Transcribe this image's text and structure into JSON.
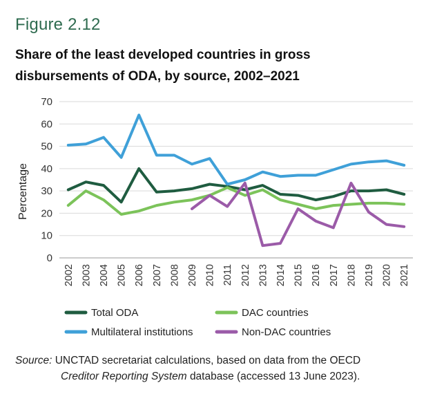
{
  "figure_label": "Figure 2.12",
  "title_line1": "Share of the least developed countries in gross",
  "title_line2": "disbursements of ODA, by source, 2002–2021",
  "source": {
    "label": "Source:",
    "text_a": "UNCTAD secretariat calculations, based on data from the OECD",
    "italic": "Creditor Reporting System",
    "text_b": "database (accessed 13 June 2023)."
  },
  "chart_data": {
    "type": "line",
    "title": "",
    "xlabel": "",
    "ylabel": "Percentage",
    "ylim": [
      0,
      70
    ],
    "yticks": [
      0,
      10,
      20,
      30,
      40,
      50,
      60,
      70
    ],
    "grid": true,
    "legend_position": "bottom",
    "x": [
      "2002",
      "2003",
      "2004",
      "2005",
      "2006",
      "2007",
      "2008",
      "2009",
      "2010",
      "2011",
      "2012",
      "2013",
      "2014",
      "2015",
      "2016",
      "2017",
      "2018",
      "2019",
      "2020",
      "2021"
    ],
    "series": [
      {
        "name": "Total ODA",
        "color": "#1f5c40",
        "values": [
          30.5,
          34,
          32.5,
          25,
          40,
          29.5,
          30,
          31,
          33,
          32,
          30.5,
          32.5,
          28.5,
          28,
          26,
          27.5,
          30,
          30,
          30.5,
          28.5
        ]
      },
      {
        "name": "DAC countries",
        "color": "#7cc35a",
        "values": [
          23.5,
          30,
          26,
          19.5,
          21,
          23.5,
          25,
          26,
          28,
          31.5,
          28,
          30.5,
          26,
          24,
          22,
          23.5,
          24,
          24.5,
          24.5,
          24
        ]
      },
      {
        "name": "Multilateral institutions",
        "color": "#3fa0d8",
        "values": [
          50.5,
          51,
          54,
          45,
          64,
          46,
          46,
          42,
          44.5,
          33,
          35,
          38.5,
          36.5,
          37,
          37,
          39.5,
          42,
          43,
          43.5,
          41.5
        ]
      },
      {
        "name": "Non-DAC countries",
        "color": "#9b5ba8",
        "values": [
          null,
          null,
          null,
          null,
          null,
          null,
          null,
          22,
          28,
          23,
          33.5,
          5.5,
          6.5,
          22,
          16.5,
          13.5,
          33.5,
          20.5,
          15,
          14
        ]
      }
    ]
  }
}
